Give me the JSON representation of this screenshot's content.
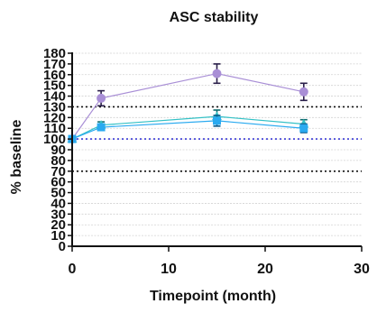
{
  "chart_data": {
    "type": "line",
    "title": "ASC stability",
    "xlabel": "Timepoint (month)",
    "ylabel": "% baseline",
    "xlim": [
      0,
      30
    ],
    "ylim": [
      0,
      180
    ],
    "xticks": [
      0,
      10,
      20,
      30
    ],
    "yticks": [
      0,
      10,
      20,
      30,
      40,
      50,
      60,
      70,
      80,
      90,
      100,
      110,
      120,
      130,
      140,
      150,
      160,
      170,
      180
    ],
    "grid": true,
    "reference_lines": [
      {
        "y": 130,
        "style": "dotted",
        "color": "#111111"
      },
      {
        "y": 100,
        "style": "dotted",
        "color": "#3a3ad6"
      },
      {
        "y": 70,
        "style": "dotted",
        "color": "#111111"
      }
    ],
    "series": [
      {
        "marker": "circle",
        "color": "#a98fd6",
        "errcolor": "#2a1f4a",
        "x": [
          0,
          3,
          15,
          24
        ],
        "y": [
          100,
          138,
          161,
          144
        ],
        "err": [
          0,
          7,
          9,
          8
        ]
      },
      {
        "marker": "triangle",
        "color": "#33c1c6",
        "errcolor": "#0f6b6e",
        "x": [
          0,
          3,
          15,
          24
        ],
        "y": [
          100,
          113,
          121,
          114
        ],
        "err": [
          0,
          3,
          6,
          4
        ]
      },
      {
        "marker": "square",
        "color": "#2aaaf0",
        "errcolor": "#0c5a8a",
        "x": [
          0,
          3,
          15,
          24
        ],
        "y": [
          100,
          111,
          117,
          110
        ],
        "err": [
          0,
          3,
          5,
          4
        ]
      }
    ]
  }
}
